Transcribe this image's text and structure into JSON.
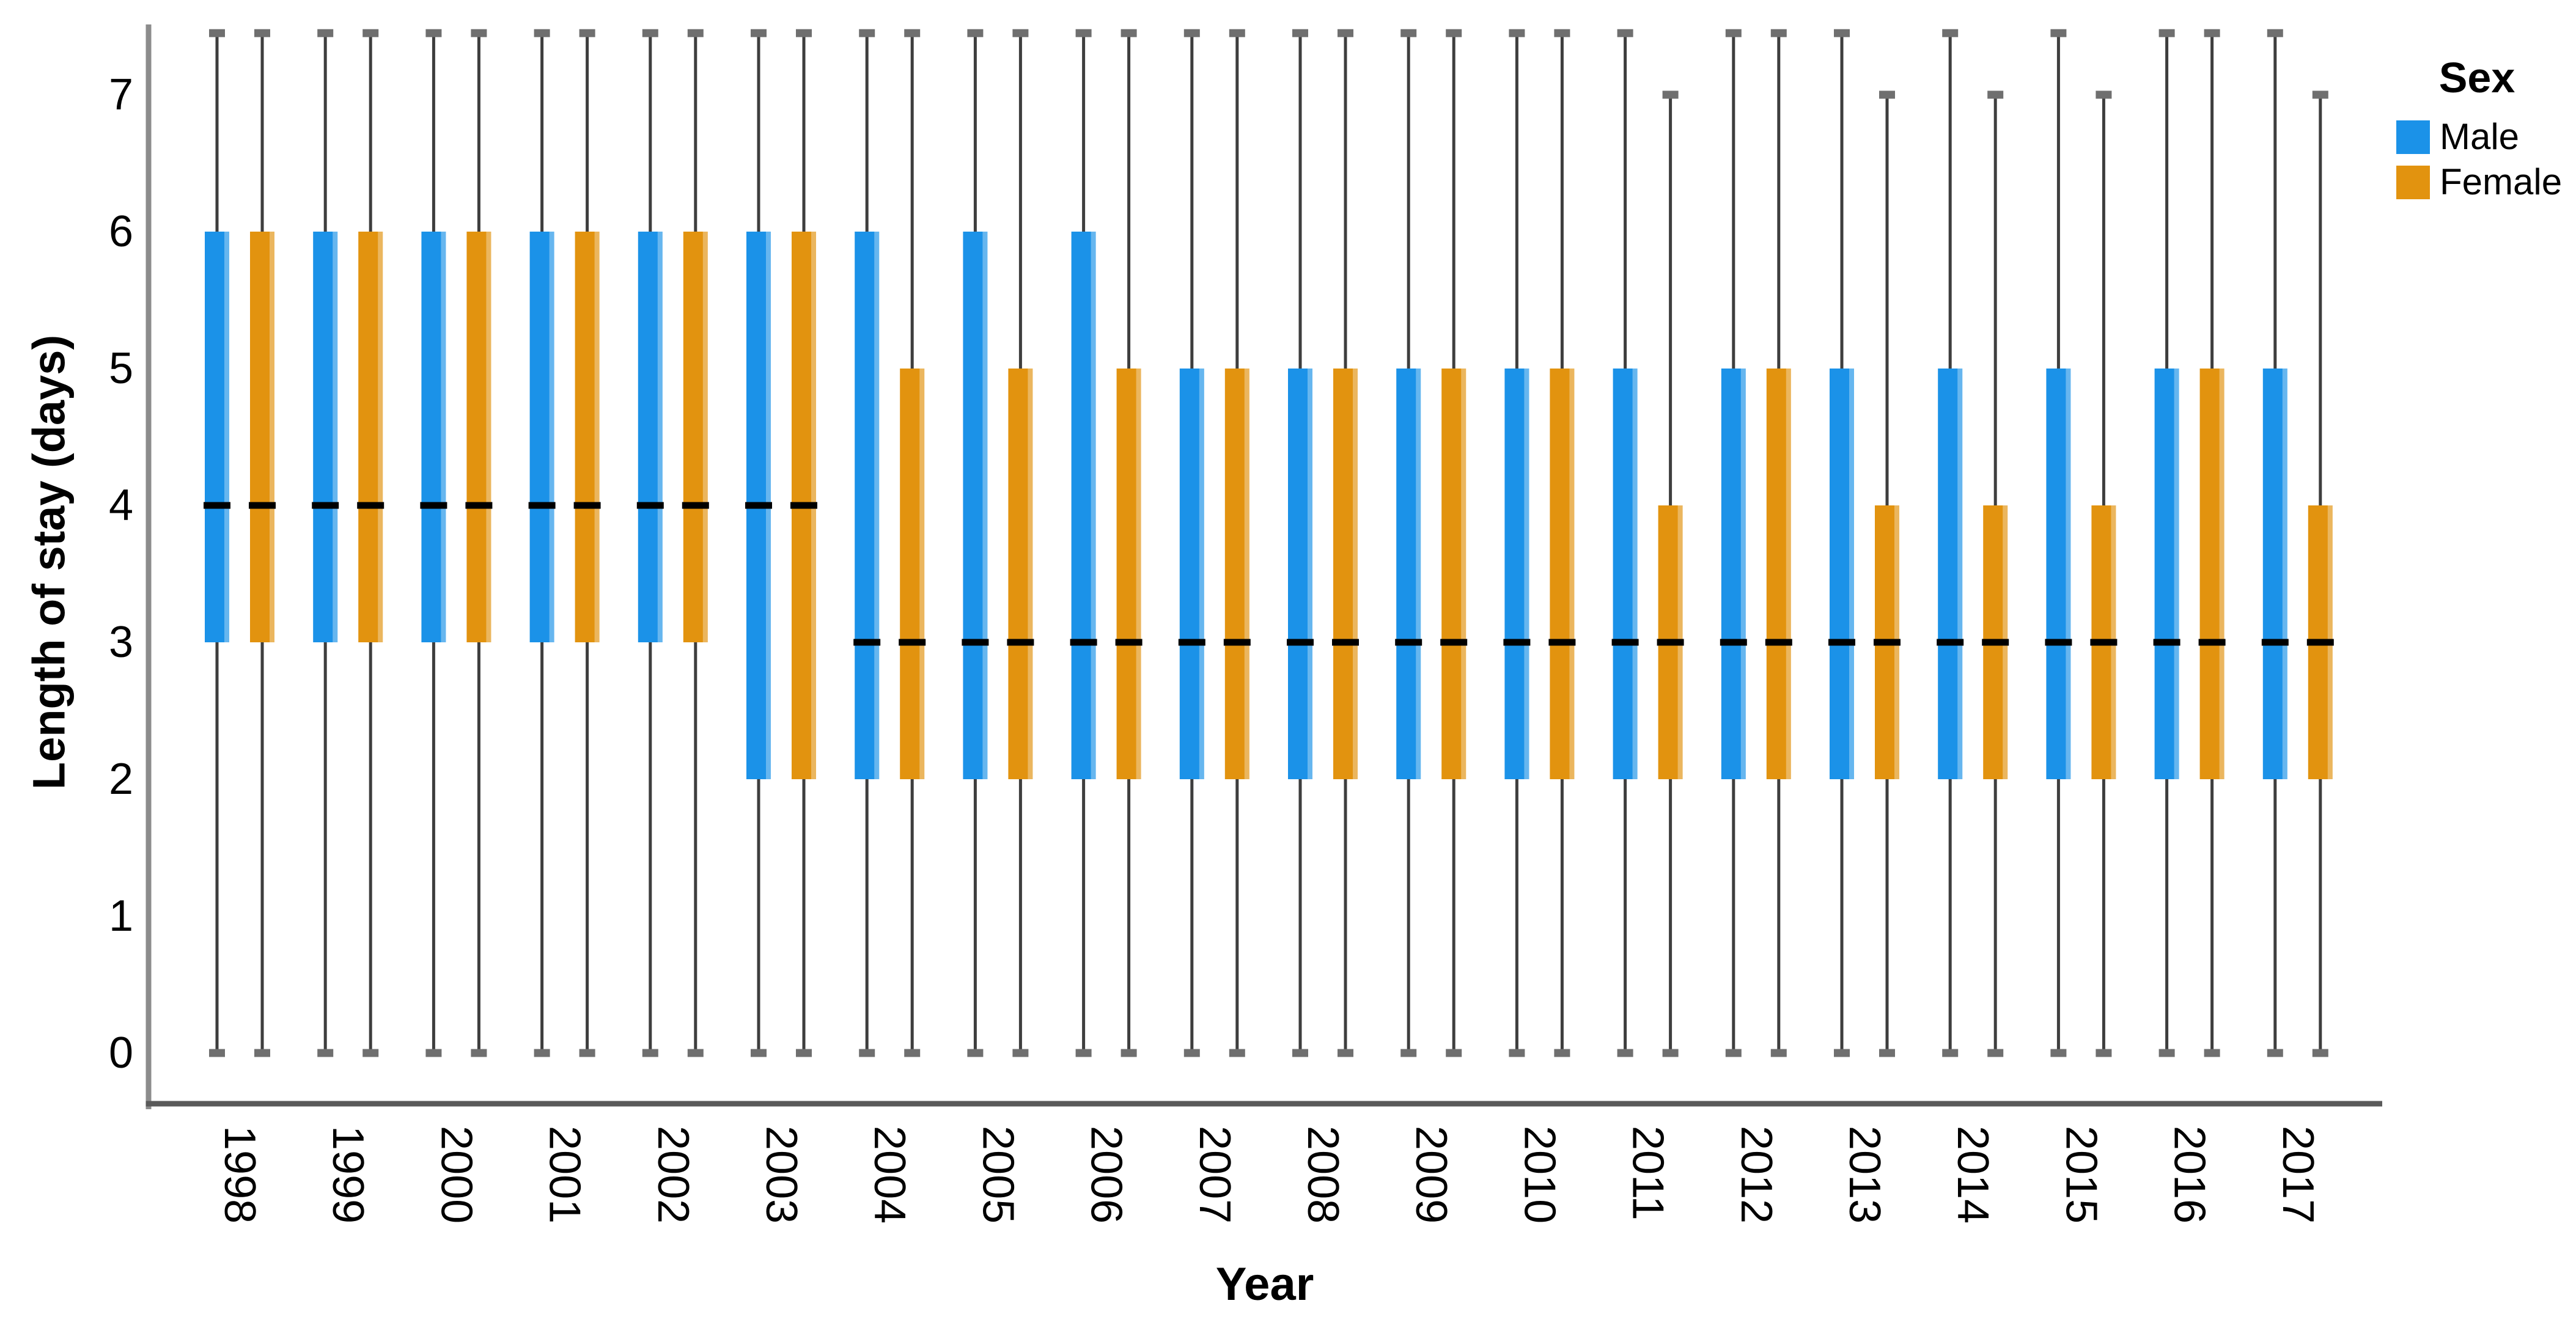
{
  "chart_data": {
    "type": "boxplot",
    "title": "",
    "xlabel": "Year",
    "ylabel": "Length of stay (days)",
    "legend": {
      "title": "Sex",
      "position": "top-right"
    },
    "y_ticks": [
      0,
      1,
      2,
      3,
      4,
      5,
      6,
      7
    ],
    "ylim": [
      0,
      7.5
    ],
    "grid": false,
    "x_tick_rotation_deg": 90,
    "categories": [
      "1998",
      "1999",
      "2000",
      "2001",
      "2002",
      "2003",
      "2004",
      "2005",
      "2006",
      "2007",
      "2008",
      "2009",
      "2010",
      "2011",
      "2012",
      "2013",
      "2014",
      "2015",
      "2016",
      "2017"
    ],
    "series": [
      {
        "name": "Male",
        "color": "#1B92E8",
        "boxes": [
          {
            "category": "1998",
            "whisker_low": 0,
            "q1": 3,
            "median": 4,
            "q3": 6,
            "whisker_high": 7.45,
            "clipped_top": true
          },
          {
            "category": "1999",
            "whisker_low": 0,
            "q1": 3,
            "median": 4,
            "q3": 6,
            "whisker_high": 7.45,
            "clipped_top": true
          },
          {
            "category": "2000",
            "whisker_low": 0,
            "q1": 3,
            "median": 4,
            "q3": 6,
            "whisker_high": 7.45,
            "clipped_top": true
          },
          {
            "category": "2001",
            "whisker_low": 0,
            "q1": 3,
            "median": 4,
            "q3": 6,
            "whisker_high": 7.45,
            "clipped_top": true
          },
          {
            "category": "2002",
            "whisker_low": 0,
            "q1": 3,
            "median": 4,
            "q3": 6,
            "whisker_high": 7.45,
            "clipped_top": true
          },
          {
            "category": "2003",
            "whisker_low": 0,
            "q1": 2,
            "median": 4,
            "q3": 6,
            "whisker_high": 7.45,
            "clipped_top": true
          },
          {
            "category": "2004",
            "whisker_low": 0,
            "q1": 2,
            "median": 3,
            "q3": 6,
            "whisker_high": 7.45,
            "clipped_top": true
          },
          {
            "category": "2005",
            "whisker_low": 0,
            "q1": 2,
            "median": 3,
            "q3": 6,
            "whisker_high": 7.45,
            "clipped_top": true
          },
          {
            "category": "2006",
            "whisker_low": 0,
            "q1": 2,
            "median": 3,
            "q3": 6,
            "whisker_high": 7.45,
            "clipped_top": true
          },
          {
            "category": "2007",
            "whisker_low": 0,
            "q1": 2,
            "median": 3,
            "q3": 5,
            "whisker_high": 7.45,
            "clipped_top": true
          },
          {
            "category": "2008",
            "whisker_low": 0,
            "q1": 2,
            "median": 3,
            "q3": 5,
            "whisker_high": 7.45,
            "clipped_top": true
          },
          {
            "category": "2009",
            "whisker_low": 0,
            "q1": 2,
            "median": 3,
            "q3": 5,
            "whisker_high": 7.45,
            "clipped_top": true
          },
          {
            "category": "2010",
            "whisker_low": 0,
            "q1": 2,
            "median": 3,
            "q3": 5,
            "whisker_high": 7.45,
            "clipped_top": true
          },
          {
            "category": "2011",
            "whisker_low": 0,
            "q1": 2,
            "median": 3,
            "q3": 5,
            "whisker_high": 7.45,
            "clipped_top": true
          },
          {
            "category": "2012",
            "whisker_low": 0,
            "q1": 2,
            "median": 3,
            "q3": 5,
            "whisker_high": 7.45,
            "clipped_top": true
          },
          {
            "category": "2013",
            "whisker_low": 0,
            "q1": 2,
            "median": 3,
            "q3": 5,
            "whisker_high": 7.45,
            "clipped_top": true
          },
          {
            "category": "2014",
            "whisker_low": 0,
            "q1": 2,
            "median": 3,
            "q3": 5,
            "whisker_high": 7.45,
            "clipped_top": true
          },
          {
            "category": "2015",
            "whisker_low": 0,
            "q1": 2,
            "median": 3,
            "q3": 5,
            "whisker_high": 7.45,
            "clipped_top": true
          },
          {
            "category": "2016",
            "whisker_low": 0,
            "q1": 2,
            "median": 3,
            "q3": 5,
            "whisker_high": 7.45,
            "clipped_top": true
          },
          {
            "category": "2017",
            "whisker_low": 0,
            "q1": 2,
            "median": 3,
            "q3": 5,
            "whisker_high": 7.45,
            "clipped_top": true
          }
        ]
      },
      {
        "name": "Female",
        "color": "#E2930F",
        "boxes": [
          {
            "category": "1998",
            "whisker_low": 0,
            "q1": 3,
            "median": 4,
            "q3": 6,
            "whisker_high": 7.45,
            "clipped_top": true
          },
          {
            "category": "1999",
            "whisker_low": 0,
            "q1": 3,
            "median": 4,
            "q3": 6,
            "whisker_high": 7.45,
            "clipped_top": true
          },
          {
            "category": "2000",
            "whisker_low": 0,
            "q1": 3,
            "median": 4,
            "q3": 6,
            "whisker_high": 7.45,
            "clipped_top": true
          },
          {
            "category": "2001",
            "whisker_low": 0,
            "q1": 3,
            "median": 4,
            "q3": 6,
            "whisker_high": 7.45,
            "clipped_top": true
          },
          {
            "category": "2002",
            "whisker_low": 0,
            "q1": 3,
            "median": 4,
            "q3": 6,
            "whisker_high": 7.45,
            "clipped_top": true
          },
          {
            "category": "2003",
            "whisker_low": 0,
            "q1": 2,
            "median": 4,
            "q3": 6,
            "whisker_high": 7.45,
            "clipped_top": true
          },
          {
            "category": "2004",
            "whisker_low": 0,
            "q1": 2,
            "median": 3,
            "q3": 5,
            "whisker_high": 7.45,
            "clipped_top": true
          },
          {
            "category": "2005",
            "whisker_low": 0,
            "q1": 2,
            "median": 3,
            "q3": 5,
            "whisker_high": 7.45,
            "clipped_top": true
          },
          {
            "category": "2006",
            "whisker_low": 0,
            "q1": 2,
            "median": 3,
            "q3": 5,
            "whisker_high": 7.45,
            "clipped_top": true
          },
          {
            "category": "2007",
            "whisker_low": 0,
            "q1": 2,
            "median": 3,
            "q3": 5,
            "whisker_high": 7.45,
            "clipped_top": true
          },
          {
            "category": "2008",
            "whisker_low": 0,
            "q1": 2,
            "median": 3,
            "q3": 5,
            "whisker_high": 7.45,
            "clipped_top": true
          },
          {
            "category": "2009",
            "whisker_low": 0,
            "q1": 2,
            "median": 3,
            "q3": 5,
            "whisker_high": 7.45,
            "clipped_top": true
          },
          {
            "category": "2010",
            "whisker_low": 0,
            "q1": 2,
            "median": 3,
            "q3": 5,
            "whisker_high": 7.45,
            "clipped_top": true
          },
          {
            "category": "2011",
            "whisker_low": 0,
            "q1": 2,
            "median": 3,
            "q3": 4,
            "whisker_high": 7,
            "clipped_top": false
          },
          {
            "category": "2012",
            "whisker_low": 0,
            "q1": 2,
            "median": 3,
            "q3": 5,
            "whisker_high": 7.45,
            "clipped_top": true
          },
          {
            "category": "2013",
            "whisker_low": 0,
            "q1": 2,
            "median": 3,
            "q3": 4,
            "whisker_high": 7,
            "clipped_top": false
          },
          {
            "category": "2014",
            "whisker_low": 0,
            "q1": 2,
            "median": 3,
            "q3": 4,
            "whisker_high": 7,
            "clipped_top": false
          },
          {
            "category": "2015",
            "whisker_low": 0,
            "q1": 2,
            "median": 3,
            "q3": 4,
            "whisker_high": 7,
            "clipped_top": false
          },
          {
            "category": "2016",
            "whisker_low": 0,
            "q1": 2,
            "median": 3,
            "q3": 5,
            "whisker_high": 7.45,
            "clipped_top": true
          },
          {
            "category": "2017",
            "whisker_low": 0,
            "q1": 2,
            "median": 3,
            "q3": 4,
            "whisker_high": 7,
            "clipped_top": false
          }
        ]
      }
    ],
    "style": {
      "median_color": "#000000",
      "whisker_color": "#3E3E3E",
      "whisker_cap_color": "#6F6F6F",
      "y_axis_color": "#8C8C8C",
      "x_axis_color": "#5A5A5A",
      "text_color": "#000000",
      "background": "#FFFFFF"
    }
  }
}
